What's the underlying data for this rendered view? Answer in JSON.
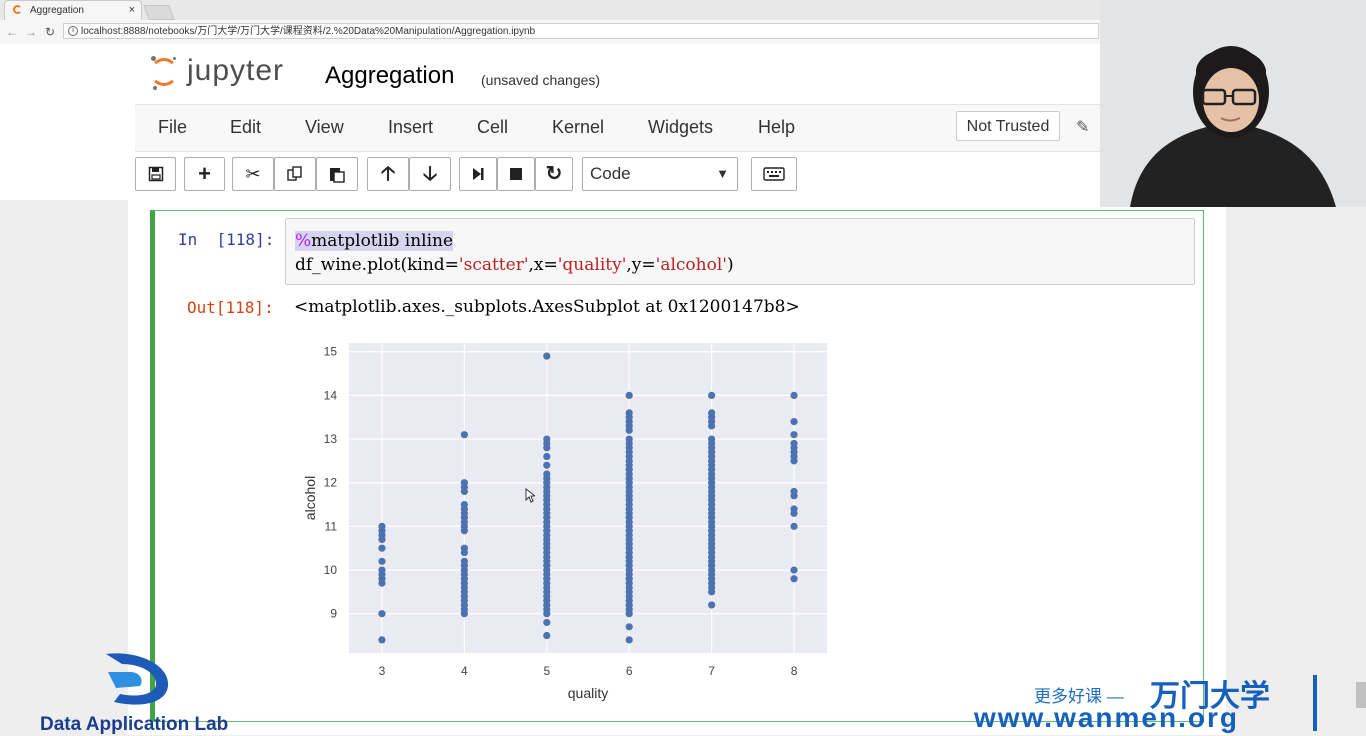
{
  "browser": {
    "tab_title": "Aggregation",
    "tab_close": "×",
    "url": "localhost:8888/notebooks/万门大学/万门大学/课程资料/2.%20Data%20Manipulation/Aggregation.ipynb"
  },
  "header": {
    "logo_text": "jupyter",
    "notebook_title": "Aggregation",
    "save_status": "(unsaved changes)"
  },
  "menu": {
    "items": [
      "File",
      "Edit",
      "View",
      "Insert",
      "Cell",
      "Kernel",
      "Widgets",
      "Help"
    ],
    "trusted": "Not Trusted"
  },
  "toolbar": {
    "cell_type": "Code"
  },
  "cell": {
    "in_prompt": "In  [118]:",
    "code_line1_magic": "%",
    "code_line1_rest": "matplotlib inline",
    "code_line2_a": "df_wine.plot(kind=",
    "code_line2_s1": "'scatter'",
    "code_line2_b": ",x=",
    "code_line2_s2": "'quality'",
    "code_line2_c": ",y=",
    "code_line2_s3": "'alcohol'",
    "code_line2_d": ")",
    "out_prompt": "Out[118]:",
    "out_text": "<matplotlib.axes._subplots.AxesSubplot at 0x1200147b8>"
  },
  "chart_data": {
    "type": "scatter",
    "xlabel": "quality",
    "ylabel": "alcohol",
    "xlim": [
      2.6,
      8.4
    ],
    "ylim": [
      8.1,
      15.2
    ],
    "xticks": [
      3,
      4,
      5,
      6,
      7,
      8
    ],
    "yticks": [
      9,
      10,
      11,
      12,
      13,
      14,
      15
    ],
    "grid": true,
    "point_color": "#4c72b0",
    "background_color": "#eaeaf2",
    "points": {
      "3": [
        8.4,
        9.0,
        9.7,
        9.8,
        9.9,
        10.0,
        10.2,
        10.5,
        10.7,
        10.8,
        10.9,
        11.0
      ],
      "4": [
        9.0,
        9.1,
        9.2,
        9.3,
        9.4,
        9.5,
        9.6,
        9.7,
        9.8,
        9.9,
        10.0,
        10.1,
        10.2,
        10.4,
        10.5,
        10.9,
        11.0,
        11.1,
        11.2,
        11.3,
        11.4,
        11.5,
        11.8,
        11.9,
        12.0,
        13.1
      ],
      "5": [
        8.5,
        8.8,
        9.0,
        9.1,
        9.2,
        9.3,
        9.4,
        9.5,
        9.6,
        9.7,
        9.8,
        9.9,
        10.0,
        10.1,
        10.2,
        10.3,
        10.4,
        10.5,
        10.6,
        10.7,
        10.8,
        10.9,
        11.0,
        11.1,
        11.2,
        11.3,
        11.4,
        11.5,
        11.6,
        11.7,
        11.8,
        11.9,
        12.0,
        12.1,
        12.2,
        12.4,
        12.6,
        12.8,
        12.9,
        13.0,
        14.9
      ],
      "6": [
        8.4,
        8.7,
        9.0,
        9.1,
        9.2,
        9.3,
        9.4,
        9.5,
        9.6,
        9.7,
        9.8,
        9.9,
        10.0,
        10.1,
        10.2,
        10.3,
        10.4,
        10.5,
        10.6,
        10.7,
        10.8,
        10.9,
        11.0,
        11.1,
        11.2,
        11.3,
        11.4,
        11.5,
        11.6,
        11.7,
        11.8,
        11.9,
        12.0,
        12.1,
        12.2,
        12.3,
        12.4,
        12.5,
        12.6,
        12.7,
        12.8,
        12.9,
        13.0,
        13.2,
        13.3,
        13.4,
        13.5,
        13.6,
        14.0
      ],
      "7": [
        9.2,
        9.5,
        9.6,
        9.7,
        9.8,
        9.9,
        10.0,
        10.1,
        10.2,
        10.3,
        10.4,
        10.5,
        10.6,
        10.7,
        10.8,
        10.9,
        11.0,
        11.1,
        11.2,
        11.3,
        11.4,
        11.5,
        11.6,
        11.7,
        11.8,
        11.9,
        12.0,
        12.1,
        12.2,
        12.3,
        12.4,
        12.5,
        12.6,
        12.7,
        12.8,
        12.9,
        13.0,
        13.3,
        13.4,
        13.5,
        13.6,
        14.0
      ],
      "8": [
        9.8,
        10.0,
        11.0,
        11.3,
        11.4,
        11.7,
        11.8,
        12.5,
        12.6,
        12.7,
        12.8,
        12.9,
        13.1,
        13.4,
        14.0
      ]
    }
  },
  "watermarks": {
    "lab": "Data Application Lab",
    "slogan": "更多好课 —",
    "brand": "万门大学",
    "site": "www.wanmen.org"
  }
}
